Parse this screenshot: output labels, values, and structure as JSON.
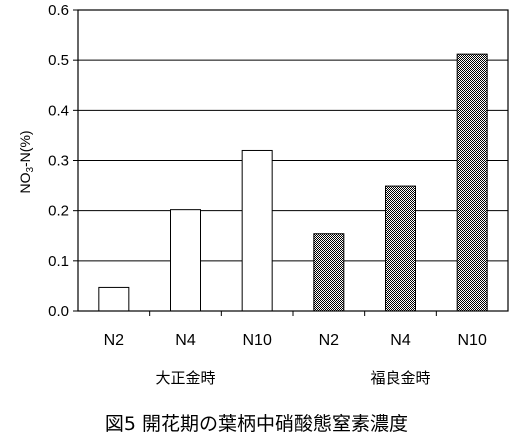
{
  "caption": "図5 開花期の葉柄中硝酸態窒素濃度",
  "chart_data": {
    "type": "bar",
    "ylabel": {
      "main1": "NO",
      "sub": "3",
      "main2": "-N(%)"
    },
    "ylim": [
      0,
      0.6
    ],
    "yticks": [
      "0.0",
      "0.1",
      "0.2",
      "0.3",
      "0.4",
      "0.5",
      "0.6"
    ],
    "grid": "horizontal",
    "categories": [
      "N2",
      "N4",
      "N10",
      "N2",
      "N4",
      "N10"
    ],
    "groups": [
      {
        "name": "大正金時",
        "values": [
          0.047,
          0.202,
          0.32
        ],
        "fill": "#ffffff"
      },
      {
        "name": "福良金時",
        "values": [
          0.154,
          0.249,
          0.512
        ],
        "fill": "#b8b8b8"
      }
    ]
  }
}
